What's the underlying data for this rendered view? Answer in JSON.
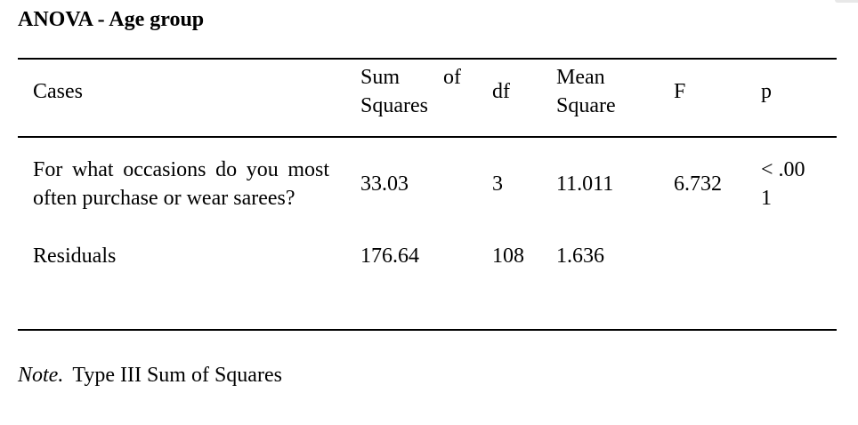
{
  "title": "ANOVA - Age group",
  "table": {
    "columns": [
      {
        "key": "cases",
        "label": "Cases"
      },
      {
        "key": "sum_of_squares",
        "label": "Sum of Squares"
      },
      {
        "key": "df",
        "label": "df"
      },
      {
        "key": "mean_square",
        "label": "Mean Square"
      },
      {
        "key": "f",
        "label": "F"
      },
      {
        "key": "p",
        "label": "p"
      }
    ],
    "rows": [
      {
        "cases": "For what occasions do you most often purchase or wear sarees?",
        "sum_of_squares": "33.03",
        "df": "3",
        "mean_square": "11.011",
        "f": "6.732",
        "p": "< .001"
      },
      {
        "cases": "Residuals",
        "sum_of_squares": "176.64",
        "df": "108",
        "mean_square": "1.636",
        "f": "",
        "p": ""
      }
    ]
  },
  "note": {
    "prefix": "Note.",
    "text": "Type III Sum of Squares"
  }
}
